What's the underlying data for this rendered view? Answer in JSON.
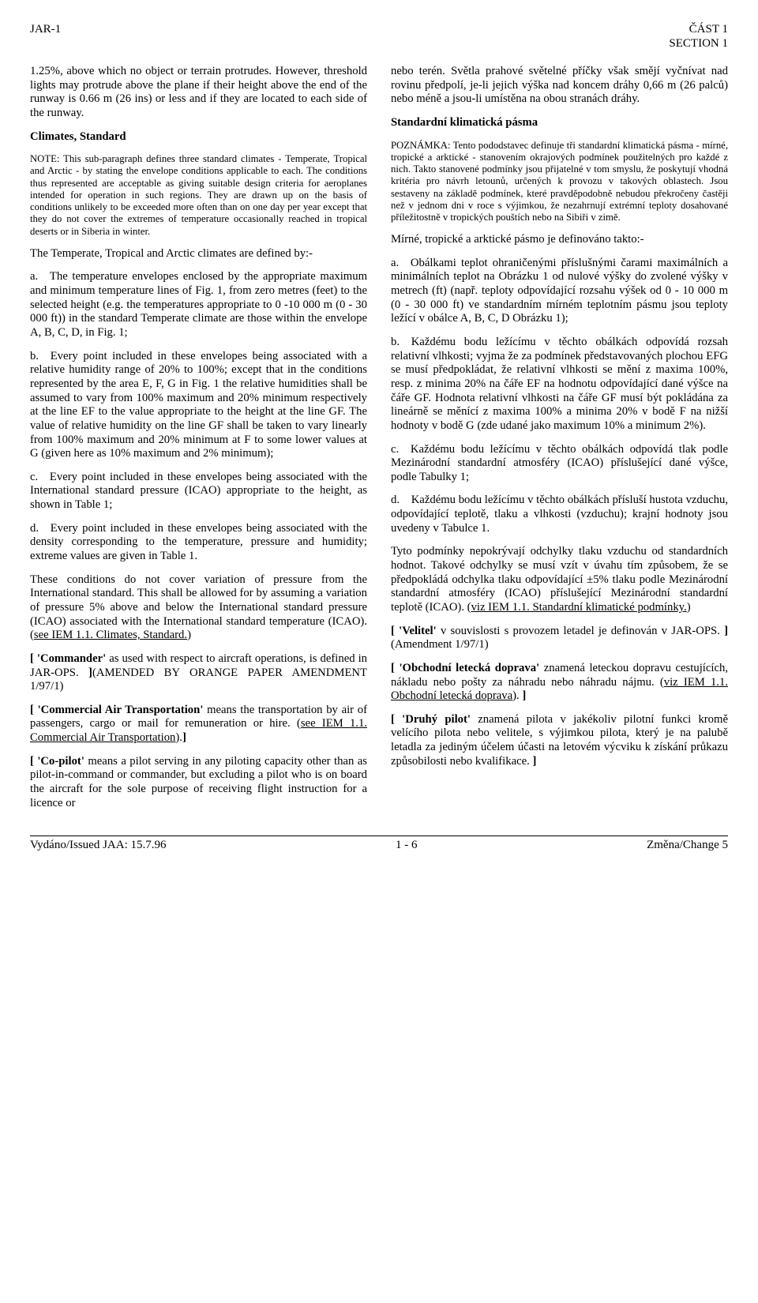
{
  "header": {
    "left": "JAR-1",
    "right_top": "ČÁST 1",
    "right_bot": "SECTION 1"
  },
  "left": {
    "p1": "1.25%, above which no object or terrain protrudes. However, threshold lights may protrude above the plane if their height above the end of the runway is 0.66 m (26 ins) or less and if they are located to each side of the runway.",
    "p2a": "Climates, Standard",
    "p3": "NOTE: This sub-paragraph defines three standard climates - Temperate, Tropical and Arctic - by stating the envelope conditions applicable to each. The conditions thus represented are acceptable as giving suitable design criteria for aeroplanes intended for operation in such regions. They are drawn up on the basis of conditions unlikely to be exceeded more often than on one day per year except that they do not cover the extremes of temperature occasionally reached in tropical deserts or in Siberia in winter.",
    "p4": "The Temperate, Tropical and Arctic climates are defined by:-",
    "p5": "a. The temperature envelopes enclosed by the appropriate maximum and minimum temperature lines of Fig. 1, from zero metres (feet) to the selected height (e.g. the temperatures appropriate to 0 -10 000 m (0 - 30 000 ft)) in the standard Temperate climate are those within the envelope A, B, C, D, in Fig. 1;",
    "p6": "b. Every point included in these envelopes being associated with a relative humidity range of 20% to 100%; except that in the conditions represented by the area E, F, G in Fig. 1 the relative humidities shall be assumed to vary from 100% maximum and 20% minimum respectively at the line EF to the value appropriate to the height at the line GF. The value of relative humidity on the line GF shall be taken to vary linearly from 100% maximum and 20% minimum at F to some lower values at G (given here as 10% maximum and 2% minimum);",
    "p7": "c. Every point included in these envelopes being associated with the International standard pressure (ICAO) appropriate to the height, as shown in Table 1;",
    "p8": "d. Every point included in these envelopes being associated with the density corresponding to the temperature, pressure and humidity; extreme values are given in Table 1.",
    "p9a": "These conditions do not cover variation of pressure from the International standard. This shall be allowed for by assuming a variation of pressure 5% above and below the International standard pressure (ICAO) associated with the International standard temperature (ICAO). (",
    "p9b": "see IEM 1.1. Climates, Standard.",
    "p9c": ")",
    "p10a": "[ 'Commander'",
    "p10b": " as used with respect to aircraft operations, is defined in JAR-OPS. ",
    "p10c": "]",
    "p10d": "(AMENDED BY ORANGE PAPER AMENDMENT 1/97/1)",
    "p11a": "[ 'Commercial Air Transportation'",
    "p11b": " means the transportation by air of passengers, cargo or mail for remuneration or hire. (",
    "p11c": "see IEM 1.1. Commercial Air Transportation",
    "p11d": ").",
    "p11e": "]",
    "p12a": "[ 'Co-pilot'",
    "p12b": " means a pilot serving in any piloting capacity other than as pilot-in-command or commander, but excluding a pilot who is on board the aircraft for the sole purpose of receiving flight instruction for a licence or"
  },
  "right": {
    "p1": "nebo terén. Světla prahové světelné příčky však smějí vyčnívat nad rovinu předpolí, je-li jejich výška nad koncem dráhy 0,66 m (26 palců) nebo méně a jsou-li umístěna na obou stranách dráhy.",
    "p2a": "Standardní klimatická pásma",
    "p3": "POZNÁMKA: Tento pododstavec definuje tři standardní klimatická pásma - mírné, tropické a arktické - stanovením okrajových podmínek použitelných pro každé z nich. Takto stanovené podmínky jsou přijatelné v tom smyslu, že poskytují vhodná kritéria pro návrh letounů, určených k provozu v takových oblastech. Jsou sestaveny na základě podmínek, které pravděpodobně nebudou překročeny častěji než v jednom dni v roce s výjimkou, že nezahrnují extrémní teploty dosahované příležitostně v tropických pouštích nebo na Sibiři v zimě.",
    "p4": "Mírné, tropické a arktické pásmo je definováno takto:-",
    "p5": "a. Obálkami teplot ohraničenými příslušnými čarami maximálních a minimálních teplot na Obrázku 1 od nulové výšky do zvolené výšky v metrech (ft) (např. teploty odpovídající rozsahu výšek od 0 - 10 000 m (0 - 30 000 ft) ve standardním mírném teplotním pásmu jsou teploty ležící v obálce A, B, C, D Obrázku 1);",
    "p6": "b. Každému bodu ležícímu v těchto obálkách odpovídá rozsah relativní vlhkosti; vyjma že za podmínek představovaných plochou EFG se musí předpokládat, že relativní vlhkosti se mění z maxima 100%, resp. z minima 20% na čáře EF na hodnotu odpovídající dané výšce na čáře GF. Hodnota relativní vlhkosti na čáře GF musí být pokládána za lineárně se měnící z maxima 100% a minima 20% v bodě F na nižší hodnoty v bodě G (zde udané jako maximum 10% a minimum 2%).",
    "p7": "c. Každému bodu ležícímu v těchto obálkách odpovídá tlak podle Mezinárodní standardní atmosféry (ICAO) příslušející dané výšce, podle Tabulky 1;",
    "p8": "d. Každému bodu ležícímu v těchto obálkách přísluší hustota vzduchu, odpovídající teplotě, tlaku a vlhkosti (vzduchu); krajní hodnoty jsou uvedeny v Tabulce 1.",
    "p9a": "Tyto podmínky nepokrývají odchylky tlaku vzduchu od standardních hodnot. Takové odchylky se musí vzít v úvahu tím způsobem, že se předpokládá odchylka tlaku odpovídající ±5% tlaku podle Mezinárodní standardní atmosféry (ICAO) příslušející Mezinárodní standardní teplotě (ICAO). (",
    "p9b": "viz IEM 1.1. Standardní klimatické podmínky.",
    "p9c": ")",
    "p10a": "[ 'Velitel'",
    "p10b": " v souvislosti s provozem letadel je definován v JAR-OPS. ",
    "p10c": "]",
    "p10d": " (Amendment 1/97/1)",
    "p11a": "[ 'Obchodní letecká doprava'",
    "p11b": " znamená leteckou dopravu cestujících, nákladu nebo pošty za náhradu nebo náhradu nájmu. (",
    "p11c": "viz IEM 1.1. Obchodní letecká doprava",
    "p11d": "). ",
    "p11e": "]",
    "p12a": "[ 'Druhý pilot'",
    "p12b": " znamená pilota v jakékoliv pilotní funkci kromě velícího pilota nebo velitele, s výjimkou pilota, který je na palubě letadla za jediným účelem účasti na letovém výcviku k získání průkazu způsobilosti nebo kvalifikace. ",
    "p12c": "]"
  },
  "footer": {
    "left": "Vydáno/Issued JAA: 15.7.96",
    "center": "1 - 6",
    "right": "Změna/Change 5"
  }
}
